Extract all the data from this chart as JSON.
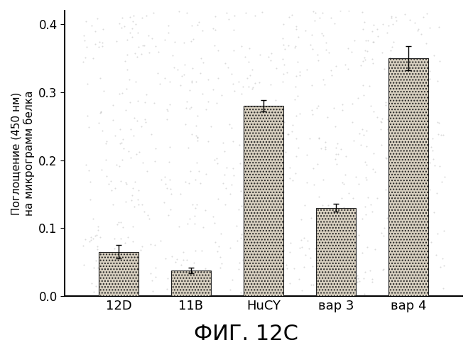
{
  "categories": [
    "12D",
    "11B",
    "HuCY",
    "вар 3",
    "вар 4"
  ],
  "values": [
    0.065,
    0.038,
    0.28,
    0.13,
    0.35
  ],
  "errors": [
    0.01,
    0.004,
    0.008,
    0.006,
    0.018
  ],
  "ylim": [
    0.0,
    0.42
  ],
  "yticks": [
    0.0,
    0.1,
    0.2,
    0.3,
    0.4
  ],
  "ylabel_line1": "Поглощение (450 нм)",
  "ylabel_line2": "на микрограмм белка",
  "title": "ФИГ. 12C",
  "bar_color": "#d0c8b8",
  "background_color": "#ffffff",
  "plot_bg_color": "#ffffff",
  "bar_edge_color": "#222222",
  "title_fontsize": 22,
  "ylabel_fontsize": 11,
  "tick_fontsize": 12,
  "xlabel_fontsize": 13
}
